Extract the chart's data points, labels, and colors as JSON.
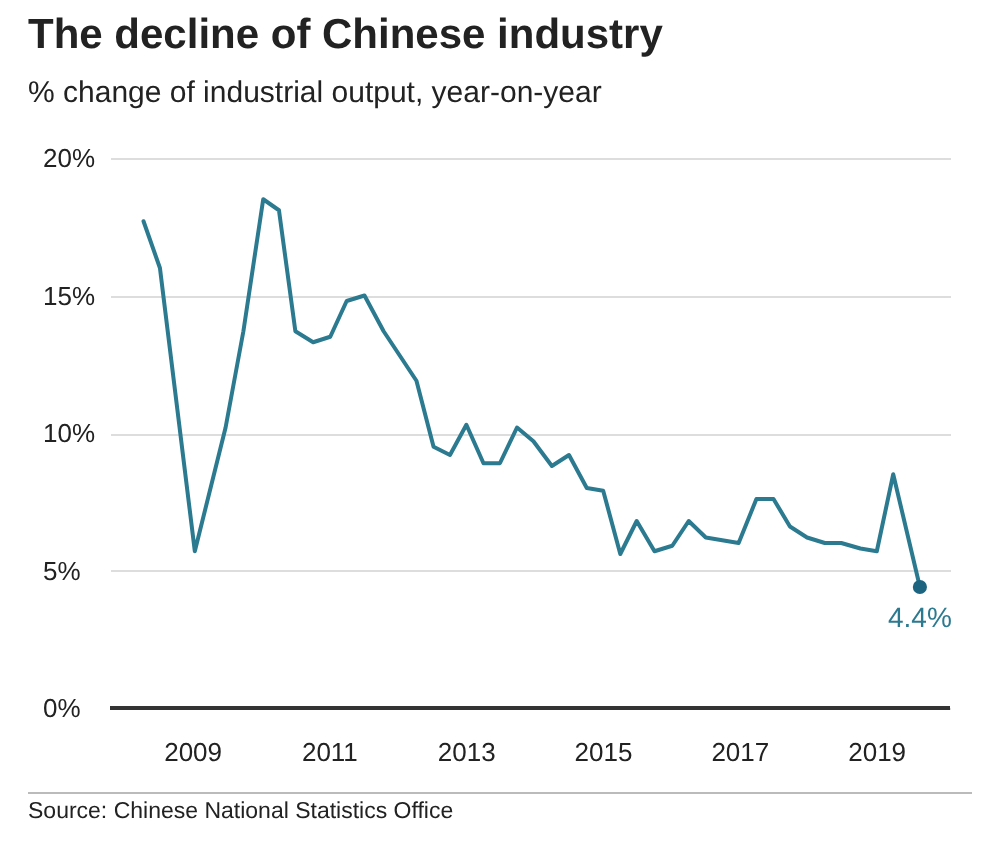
{
  "chart_data": {
    "type": "line",
    "title": "The decline of Chinese industry",
    "subtitle": "% change of industrial output, year-on-year",
    "x": [
      2008.29,
      2008.53,
      2009.04,
      2009.49,
      2009.75,
      2010.04,
      2010.27,
      2010.51,
      2010.77,
      2011.02,
      2011.26,
      2011.52,
      2011.8,
      2012.04,
      2012.28,
      2012.53,
      2012.77,
      2013.01,
      2013.26,
      2013.5,
      2013.75,
      2013.99,
      2014.26,
      2014.51,
      2014.77,
      2015.01,
      2015.26,
      2015.5,
      2015.76,
      2016.02,
      2016.26,
      2016.51,
      2016.75,
      2016.99,
      2017.25,
      2017.5,
      2017.74,
      2017.99,
      2018.25,
      2018.49,
      2018.77,
      2019.01,
      2019.25,
      2019.64
    ],
    "series": [
      {
        "color": "#2b7a90",
        "values": [
          17.7,
          16.0,
          5.7,
          10.2,
          13.7,
          18.5,
          18.1,
          13.7,
          13.3,
          13.5,
          14.8,
          15.0,
          13.7,
          12.8,
          11.9,
          9.5,
          9.2,
          10.3,
          8.9,
          8.9,
          10.2,
          9.7,
          8.8,
          9.2,
          8.0,
          7.9,
          5.6,
          6.8,
          5.7,
          5.9,
          6.8,
          6.2,
          6.1,
          6.0,
          7.6,
          7.6,
          6.6,
          6.2,
          6.0,
          6.0,
          5.8,
          5.7,
          8.5,
          4.4
        ]
      }
    ],
    "xlim": [
      2007.8,
      2020.08
    ],
    "ylim": [
      0,
      20
    ],
    "xticks": [
      2009,
      2011,
      2013,
      2015,
      2017,
      2019
    ],
    "yticks": [
      {
        "value": 0,
        "label": "0%"
      },
      {
        "value": 5,
        "label": "5%"
      },
      {
        "value": 10,
        "label": "10%"
      },
      {
        "value": 15,
        "label": "15%"
      },
      {
        "value": 20,
        "label": "20%"
      }
    ],
    "grid": "y",
    "annotations": [
      {
        "text": "4.4%",
        "x": 2019.64,
        "y": 4.4
      },
      "Source: Chinese National Statistics Office"
    ]
  }
}
